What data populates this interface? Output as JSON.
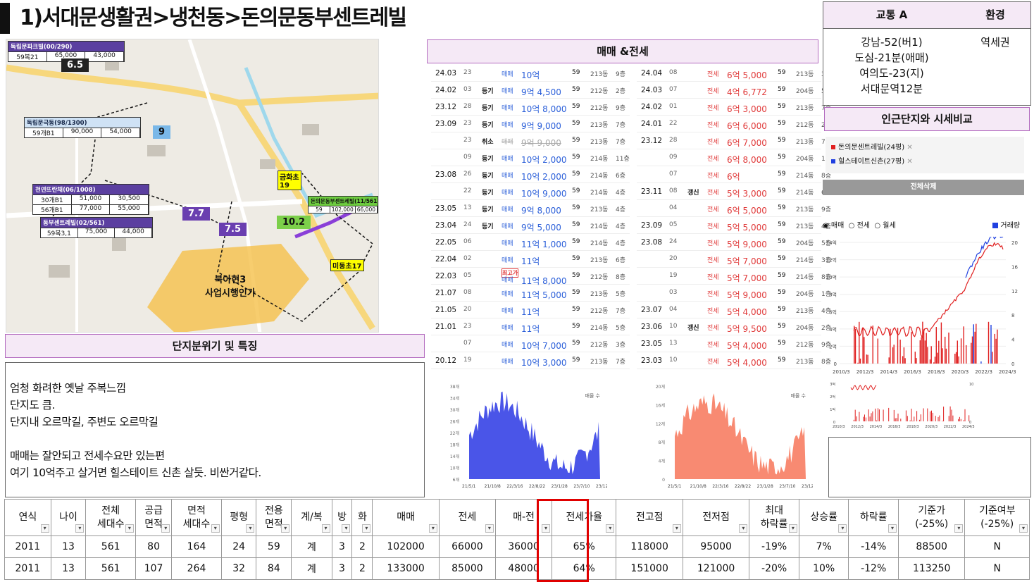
{
  "title": "1)서대문생활권>냉천동>돈의문동부센트레빌",
  "transport": {
    "col1": "교통 A",
    "col2": "환경",
    "lines": [
      "강남-52(버1)",
      "도심-21분(애매)",
      "여의도-23(지)",
      "서대문역12분"
    ],
    "env": "역세권"
  },
  "compare": {
    "title": "인근단지와 시세비교",
    "items": [
      "돈의문센트레빌(24평)",
      "힐스테이트신촌(27평)"
    ],
    "clear": "전체삭제",
    "options": [
      "매매",
      "전세",
      "월세"
    ],
    "volume": "거래량"
  },
  "trade_title": "매매 &전세",
  "area_title": "단지분위기 및 특징",
  "desc": [
    "엄청 화려한 옛날 주복느낌",
    "단지도 큼.",
    "단지내 오르막길, 주변도 오르막길",
    "",
    "매매는 잘안되고 전세수요만 있는편",
    "여기 10억주고 살거면 힐스테이트 신촌 살듯. 비싼거같다."
  ],
  "sales": [
    {
      "date": "24.03",
      "day": "23",
      "tag": "",
      "type": "매매",
      "price": "10억",
      "area": "59",
      "dong": "213동",
      "fl": "9층"
    },
    {
      "date": "24.02",
      "day": "03",
      "tag": "등기",
      "type": "매매",
      "price": "9억 4,500",
      "area": "59",
      "dong": "212동",
      "fl": "2층"
    },
    {
      "date": "23.12",
      "day": "28",
      "tag": "등기",
      "type": "매매",
      "price": "10억 8,000",
      "area": "59",
      "dong": "212동",
      "fl": "9층"
    },
    {
      "date": "23.09",
      "day": "23",
      "tag": "등기",
      "type": "매매",
      "price": "9억 9,000",
      "area": "59",
      "dong": "213동",
      "fl": "7층"
    },
    {
      "date": "",
      "day": "23",
      "tag": "취소",
      "type": "매매",
      "price": "9억 9,000",
      "area": "59",
      "dong": "213동",
      "fl": "7층",
      "strike": true
    },
    {
      "date": "",
      "day": "09",
      "tag": "등기",
      "type": "매매",
      "price": "10억 2,000",
      "area": "59",
      "dong": "214동",
      "fl": "11층"
    },
    {
      "date": "23.08",
      "day": "26",
      "tag": "등기",
      "type": "매매",
      "price": "10억 2,000",
      "area": "59",
      "dong": "214동",
      "fl": "6층"
    },
    {
      "date": "",
      "day": "22",
      "tag": "등기",
      "type": "매매",
      "price": "10억 9,000",
      "area": "59",
      "dong": "214동",
      "fl": "4층"
    },
    {
      "date": "23.05",
      "day": "13",
      "tag": "등기",
      "type": "매매",
      "price": "9억 8,000",
      "area": "59",
      "dong": "213동",
      "fl": "4층"
    },
    {
      "date": "23.04",
      "day": "24",
      "tag": "등기",
      "type": "매매",
      "price": "9억 5,000",
      "area": "59",
      "dong": "214동",
      "fl": "4층"
    },
    {
      "date": "22.05",
      "day": "06",
      "tag": "",
      "type": "매매",
      "price": "11억 1,000",
      "area": "59",
      "dong": "214동",
      "fl": "4층"
    },
    {
      "date": "22.04",
      "day": "02",
      "tag": "",
      "type": "매매",
      "price": "11억",
      "area": "59",
      "dong": "213동",
      "fl": "6층"
    },
    {
      "date": "22.03",
      "day": "05",
      "tag": "최고가",
      "type": "매매",
      "price": "11억 8,000",
      "area": "59",
      "dong": "212동",
      "fl": "8층"
    },
    {
      "date": "21.07",
      "day": "08",
      "tag": "",
      "type": "매매",
      "price": "11억 5,000",
      "area": "59",
      "dong": "213동",
      "fl": "5층"
    },
    {
      "date": "21.05",
      "day": "20",
      "tag": "",
      "type": "매매",
      "price": "11억",
      "area": "59",
      "dong": "212동",
      "fl": "7층"
    },
    {
      "date": "21.01",
      "day": "23",
      "tag": "",
      "type": "매매",
      "price": "11억",
      "area": "59",
      "dong": "214동",
      "fl": "5층"
    },
    {
      "date": "",
      "day": "07",
      "tag": "",
      "type": "매매",
      "price": "10억 7,000",
      "area": "59",
      "dong": "212동",
      "fl": "3층"
    },
    {
      "date": "20.12",
      "day": "19",
      "tag": "",
      "type": "매매",
      "price": "10억 3,000",
      "area": "59",
      "dong": "213동",
      "fl": "7층"
    }
  ],
  "rents": [
    {
      "date": "24.04",
      "day": "08",
      "tag": "",
      "type": "전세",
      "price": "6억 5,000",
      "area": "59",
      "dong": "213동",
      "fl": "3층"
    },
    {
      "date": "24.03",
      "day": "07",
      "tag": "",
      "type": "전세",
      "price": "4억 6,772",
      "area": "59",
      "dong": "204동",
      "fl": "5층"
    },
    {
      "date": "24.02",
      "day": "01",
      "tag": "",
      "type": "전세",
      "price": "6억 3,000",
      "area": "59",
      "dong": "213동",
      "fl": "7층"
    },
    {
      "date": "24.01",
      "day": "22",
      "tag": "",
      "type": "전세",
      "price": "6억 6,000",
      "area": "59",
      "dong": "212동",
      "fl": "2층"
    },
    {
      "date": "23.12",
      "day": "28",
      "tag": "",
      "type": "전세",
      "price": "6억 7,000",
      "area": "59",
      "dong": "213동",
      "fl": "7층"
    },
    {
      "date": "",
      "day": "09",
      "tag": "",
      "type": "전세",
      "price": "6억 8,000",
      "area": "59",
      "dong": "204동",
      "fl": "13층"
    },
    {
      "date": "",
      "day": "07",
      "tag": "",
      "type": "전세",
      "price": "6억",
      "area": "59",
      "dong": "214동",
      "fl": "8층"
    },
    {
      "date": "23.11",
      "day": "08",
      "tag": "갱신",
      "type": "전세",
      "price": "5억 3,000",
      "area": "59",
      "dong": "214동",
      "fl": "6층"
    },
    {
      "date": "",
      "day": "04",
      "tag": "",
      "type": "전세",
      "price": "6억 5,000",
      "area": "59",
      "dong": "213동",
      "fl": "9층"
    },
    {
      "date": "23.09",
      "day": "05",
      "tag": "",
      "type": "전세",
      "price": "5억 5,000",
      "area": "59",
      "dong": "213동",
      "fl": "4층"
    },
    {
      "date": "23.08",
      "day": "24",
      "tag": "",
      "type": "전세",
      "price": "5억 9,000",
      "area": "59",
      "dong": "204동",
      "fl": "5층"
    },
    {
      "date": "",
      "day": "20",
      "tag": "",
      "type": "전세",
      "price": "5억 7,000",
      "area": "59",
      "dong": "214동",
      "fl": "3층"
    },
    {
      "date": "",
      "day": "19",
      "tag": "",
      "type": "전세",
      "price": "5억 7,000",
      "area": "59",
      "dong": "214동",
      "fl": "8층"
    },
    {
      "date": "",
      "day": "03",
      "tag": "",
      "type": "전세",
      "price": "5억 9,000",
      "area": "59",
      "dong": "204동",
      "fl": "1층"
    },
    {
      "date": "23.07",
      "day": "04",
      "tag": "",
      "type": "전세",
      "price": "5억 4,000",
      "area": "59",
      "dong": "213동",
      "fl": "4층"
    },
    {
      "date": "23.06",
      "day": "10",
      "tag": "갱신",
      "type": "전세",
      "price": "5억 9,500",
      "area": "59",
      "dong": "204동",
      "fl": "2층"
    },
    {
      "date": "23.05",
      "day": "13",
      "tag": "",
      "type": "전세",
      "price": "5억 4,000",
      "area": "59",
      "dong": "212동",
      "fl": "9층"
    },
    {
      "date": "23.03",
      "day": "10",
      "tag": "",
      "type": "전세",
      "price": "5억 4,000",
      "area": "59",
      "dong": "213동",
      "fl": "8층"
    }
  ],
  "map": {
    "boxes": [
      {
        "name": "독립문파크빌(00/290)",
        "rows": [
          [
            "59복21",
            "65,000",
            "43,000"
          ]
        ]
      },
      {
        "name": "독립문극동(98/1300)",
        "rows": [
          [
            "59개B1",
            "90,000",
            "54,000"
          ]
        ]
      },
      {
        "name": "천연뜨란채(06/1008)",
        "rows": [
          [
            "30개B1",
            "51,000",
            "30,500"
          ],
          [
            "56개B1",
            "77,000",
            "55,000"
          ]
        ]
      },
      {
        "name": "동부센트레빌(02/561)",
        "rows": [
          [
            "59복3,1",
            "75,000",
            "44,000"
          ]
        ]
      },
      {
        "name": "돈의문동부센트레빌(11/561)",
        "rows": [
          [
            "59",
            "102,000",
            "66,000"
          ]
        ]
      }
    ],
    "nums": [
      "6.5",
      "9",
      "7.7",
      "7.5",
      "10.2"
    ],
    "labels": [
      "북아현3",
      "사업시행인가",
      "금화초",
      "19",
      "미동초17"
    ]
  },
  "chart_sale": {
    "type": "bar",
    "yticks": [
      "38개",
      "34개",
      "30개",
      "26개",
      "22개",
      "18개",
      "14개",
      "10개",
      "6개"
    ],
    "xticks": [
      "21/5/1",
      "21/10/8",
      "22/3/16",
      "22/8/22",
      "23/1/28",
      "23/7/10",
      "23/12/21"
    ],
    "legend": "매물 수",
    "color": "#4a55e8"
  },
  "chart_rent": {
    "type": "bar",
    "yticks": [
      "20개",
      "16개",
      "12개",
      "8개",
      "4개",
      "0"
    ],
    "xticks": [
      "21/5/1",
      "21/10/8",
      "22/3/16",
      "22/8/22",
      "23/1/28",
      "23/7/10",
      "23/12/21"
    ],
    "legend": "매물 수",
    "color": "#f88a72"
  },
  "chart_price": {
    "type": "line",
    "yleft": [
      "14억",
      "12억",
      "10억",
      "8억",
      "6억",
      "4억",
      "2억",
      "0"
    ],
    "yright": [
      "20",
      "16",
      "12",
      "8",
      "4",
      "0"
    ],
    "xticks": [
      "2010/3",
      "2012/3",
      "2014/3",
      "2016/3",
      "2018/3",
      "2020/3",
      "2022/3",
      "2024/3"
    ],
    "colors": {
      "sale": "#e02020",
      "other": "#2040e0"
    }
  },
  "chart_small": {
    "yleft": [
      "3억",
      "2억",
      "1억",
      "0"
    ],
    "yright": [
      "10",
      "0"
    ],
    "xticks": [
      "2010/3",
      "2012/3",
      "2014/3",
      "2016/3",
      "2018/3",
      "2020/3",
      "2022/3",
      "2024/3"
    ]
  },
  "table": {
    "headers": [
      "연식",
      "나이",
      "전체\n세대수",
      "공급\n면적",
      "면적\n세대수",
      "평형",
      "전용\n면적",
      "계/복",
      "방",
      "화",
      "매매",
      "전세",
      "매-전",
      "전세가율",
      "전고점",
      "전저점",
      "최대\n하락률",
      "상승률",
      "하락률",
      "기준가\n(-25%)",
      "기준여부\n(-25%)"
    ],
    "rows": [
      [
        "2011",
        "13",
        "561",
        "80",
        "164",
        "24",
        "59",
        "계",
        "3",
        "2",
        "102000",
        "66000",
        "36000",
        "65%",
        "118000",
        "95000",
        "-19%",
        "7%",
        "-14%",
        "88500",
        "N"
      ],
      [
        "2011",
        "13",
        "561",
        "107",
        "264",
        "32",
        "84",
        "계",
        "3",
        "2",
        "133000",
        "85000",
        "48000",
        "64%",
        "151000",
        "121000",
        "-20%",
        "10%",
        "-12%",
        "113250",
        "N"
      ]
    ]
  }
}
